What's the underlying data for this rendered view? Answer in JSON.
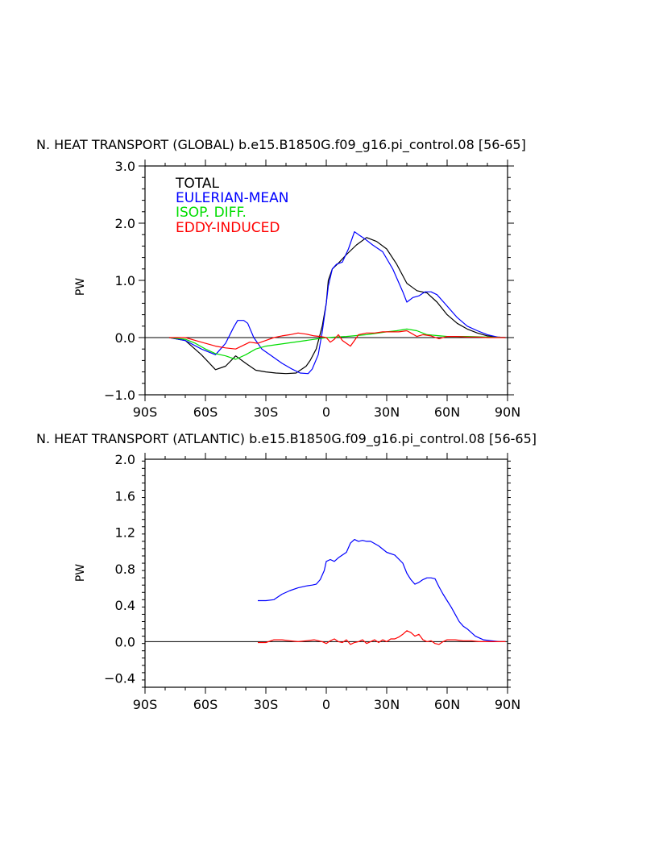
{
  "chart_data": [
    {
      "type": "line",
      "title": "N. HEAT TRANSPORT (GLOBAL) b.e15.B1850G.f09_g16.pi_control.08 [56-65]",
      "xlabel": "",
      "ylabel": "PW",
      "xlim": [
        -90,
        90
      ],
      "ylim": [
        -1.0,
        3.0
      ],
      "xticks": [
        -90,
        -60,
        -30,
        0,
        30,
        60,
        90
      ],
      "xtick_labels": [
        "90S",
        "60S",
        "30S",
        "0",
        "30N",
        "60N",
        "90N"
      ],
      "yticks": [
        -1.0,
        0.0,
        1.0,
        2.0,
        3.0
      ],
      "ytick_labels": [
        "−1.0",
        "0.0",
        "1.0",
        "2.0",
        "3.0"
      ],
      "zero_line": true,
      "legend_position": "top-left",
      "series": [
        {
          "name": "TOTAL",
          "color": "#000000",
          "x": [
            -78,
            -70,
            -62,
            -55,
            -50,
            -45,
            -40,
            -35,
            -30,
            -25,
            -20,
            -15,
            -10,
            -8,
            -5,
            -2,
            0,
            1,
            3,
            6,
            10,
            15,
            20,
            25,
            30,
            35,
            40,
            45,
            50,
            55,
            60,
            65,
            70,
            75,
            80,
            85,
            89
          ],
          "y": [
            0,
            -0.05,
            -0.3,
            -0.56,
            -0.5,
            -0.32,
            -0.45,
            -0.57,
            -0.6,
            -0.62,
            -0.63,
            -0.62,
            -0.5,
            -0.4,
            -0.2,
            0.2,
            0.6,
            1.0,
            1.2,
            1.3,
            1.45,
            1.62,
            1.75,
            1.68,
            1.55,
            1.28,
            0.95,
            0.82,
            0.78,
            0.62,
            0.4,
            0.25,
            0.15,
            0.08,
            0.03,
            0.01,
            0
          ]
        },
        {
          "name": "EULERIAN-MEAN",
          "color": "#0000ff",
          "x": [
            -78,
            -70,
            -62,
            -55,
            -50,
            -46,
            -44,
            -41,
            -39,
            -36,
            -32,
            -28,
            -22,
            -17,
            -13,
            -9,
            -7,
            -4,
            -2,
            0,
            1,
            3,
            5,
            8,
            11,
            14,
            16,
            19,
            23,
            28,
            33,
            38,
            40,
            43,
            46,
            49,
            52,
            55,
            60,
            65,
            70,
            75,
            80,
            85,
            89
          ],
          "y": [
            0,
            -0.05,
            -0.2,
            -0.3,
            -0.1,
            0.18,
            0.3,
            0.3,
            0.25,
            0,
            -0.2,
            -0.3,
            -0.45,
            -0.55,
            -0.62,
            -0.63,
            -0.55,
            -0.3,
            0.1,
            0.6,
            0.9,
            1.2,
            1.28,
            1.32,
            1.55,
            1.85,
            1.8,
            1.73,
            1.62,
            1.5,
            1.2,
            0.8,
            0.62,
            0.7,
            0.73,
            0.8,
            0.8,
            0.75,
            0.55,
            0.35,
            0.2,
            0.12,
            0.05,
            0.01,
            0
          ]
        },
        {
          "name": "ISOP. DIFF.",
          "color": "#00dd00",
          "x": [
            -78,
            -70,
            -65,
            -60,
            -55,
            -50,
            -45,
            -40,
            -35,
            -30,
            -20,
            -10,
            0,
            10,
            20,
            30,
            35,
            40,
            45,
            50,
            60,
            70,
            80,
            89
          ],
          "y": [
            0,
            -0.03,
            -0.1,
            -0.2,
            -0.28,
            -0.32,
            -0.38,
            -0.3,
            -0.2,
            -0.15,
            -0.1,
            -0.05,
            0,
            0.02,
            0.05,
            0.1,
            0.12,
            0.15,
            0.12,
            0.05,
            0.02,
            0.02,
            0.01,
            0
          ]
        },
        {
          "name": "EDDY-INDUCED",
          "color": "#ff0000",
          "x": [
            -78,
            -70,
            -65,
            -60,
            -55,
            -50,
            -45,
            -42,
            -38,
            -34,
            -30,
            -26,
            -22,
            -18,
            -14,
            -10,
            -6,
            -3,
            0,
            2,
            4,
            6,
            8,
            10,
            12,
            14,
            16,
            20,
            24,
            28,
            32,
            36,
            40,
            42,
            45,
            48,
            52,
            56,
            60,
            65,
            70,
            75,
            80,
            89
          ],
          "y": [
            0,
            0,
            -0.05,
            -0.1,
            -0.15,
            -0.18,
            -0.2,
            -0.15,
            -0.08,
            -0.1,
            -0.05,
            0,
            0.03,
            0.05,
            0.08,
            0.06,
            0.03,
            0.02,
            0,
            -0.08,
            -0.03,
            0.05,
            -0.05,
            -0.1,
            -0.15,
            -0.05,
            0.05,
            0.08,
            0.08,
            0.1,
            0.1,
            0.1,
            0.12,
            0.08,
            0.02,
            0.05,
            0.03,
            -0.02,
            0.02,
            0.02,
            0.01,
            0.01,
            0,
            0
          ]
        }
      ]
    },
    {
      "type": "line",
      "title": "N. HEAT TRANSPORT (ATLANTIC) b.e15.B1850G.f09_g16.pi_control.08 [56-65]",
      "xlabel": "",
      "ylabel": "PW",
      "xlim": [
        -90,
        90
      ],
      "ylim": [
        -0.5,
        2.0
      ],
      "xticks": [
        -90,
        -60,
        -30,
        0,
        30,
        60,
        90
      ],
      "xtick_labels": [
        "90S",
        "60S",
        "30S",
        "0",
        "30N",
        "60N",
        "90N"
      ],
      "yticks": [
        -0.4,
        0.0,
        0.4,
        0.8,
        1.2,
        1.6,
        2.0
      ],
      "ytick_labels": [
        "−0.4",
        "0.0",
        "0.4",
        "0.8",
        "1.2",
        "1.6",
        "2.0"
      ],
      "zero_line": true,
      "series": [
        {
          "name": "",
          "color": "#0000ff",
          "x": [
            -34,
            -30,
            -26,
            -22,
            -18,
            -14,
            -10,
            -7,
            -5,
            -3,
            -1,
            0,
            2,
            4,
            6,
            8,
            10,
            12,
            14,
            16,
            18,
            20,
            22,
            26,
            30,
            34,
            38,
            40,
            42,
            44,
            46,
            48,
            50,
            52,
            54,
            56,
            58,
            60,
            62,
            64,
            66,
            68,
            70,
            74,
            78,
            82,
            86,
            89
          ],
          "y": [
            0.45,
            0.45,
            0.46,
            0.52,
            0.56,
            0.59,
            0.61,
            0.62,
            0.63,
            0.68,
            0.78,
            0.88,
            0.9,
            0.88,
            0.92,
            0.95,
            0.98,
            1.08,
            1.12,
            1.1,
            1.11,
            1.1,
            1.1,
            1.05,
            0.98,
            0.95,
            0.86,
            0.75,
            0.68,
            0.63,
            0.65,
            0.68,
            0.7,
            0.7,
            0.69,
            0.6,
            0.52,
            0.45,
            0.38,
            0.3,
            0.22,
            0.17,
            0.14,
            0.06,
            0.02,
            0.01,
            0,
            0
          ]
        },
        {
          "name": "",
          "color": "#ff0000",
          "x": [
            -34,
            -30,
            -26,
            -22,
            -18,
            -14,
            -10,
            -6,
            -2,
            0,
            2,
            4,
            6,
            8,
            10,
            12,
            14,
            16,
            18,
            20,
            22,
            24,
            26,
            28,
            30,
            32,
            34,
            36,
            38,
            40,
            42,
            44,
            46,
            48,
            50,
            52,
            54,
            56,
            58,
            60,
            64,
            68,
            72,
            76,
            80,
            89
          ],
          "y": [
            -0.01,
            -0.01,
            0.02,
            0.02,
            0.01,
            0.0,
            0.01,
            0.02,
            0.0,
            -0.02,
            0.01,
            0.03,
            0.0,
            -0.01,
            0.02,
            -0.03,
            -0.01,
            0.0,
            0.02,
            -0.02,
            0.0,
            0.02,
            -0.01,
            0.02,
            0.0,
            0.03,
            0.03,
            0.05,
            0.08,
            0.12,
            0.1,
            0.06,
            0.08,
            0.02,
            0.0,
            0.01,
            -0.02,
            -0.03,
            0.0,
            0.02,
            0.02,
            0.01,
            0.01,
            0.0,
            0.0,
            0.0
          ]
        }
      ]
    }
  ]
}
